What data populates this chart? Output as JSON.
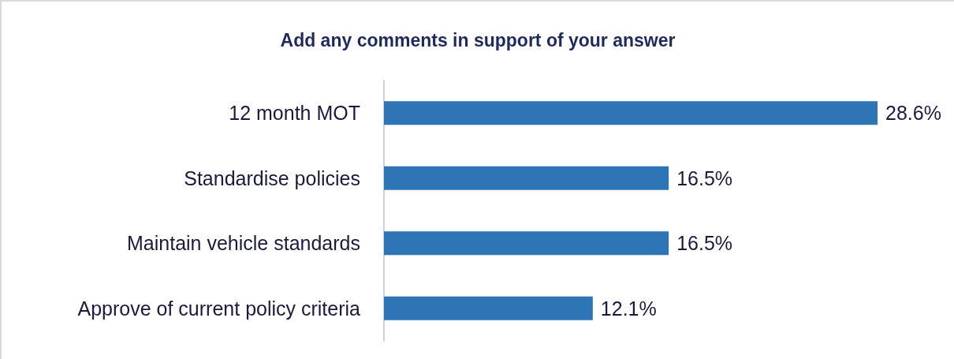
{
  "chart_data": {
    "type": "bar",
    "orientation": "horizontal",
    "title": "Add any comments in support of your answer",
    "categories": [
      "12 month MOT",
      "Standardise policies",
      "Maintain vehicle standards",
      "Approve of current policy criteria"
    ],
    "values": [
      28.6,
      16.5,
      16.5,
      12.1
    ],
    "value_labels": [
      "28.6%",
      "16.5%",
      "16.5%",
      "12.1%"
    ],
    "color": "#2e75b6"
  }
}
